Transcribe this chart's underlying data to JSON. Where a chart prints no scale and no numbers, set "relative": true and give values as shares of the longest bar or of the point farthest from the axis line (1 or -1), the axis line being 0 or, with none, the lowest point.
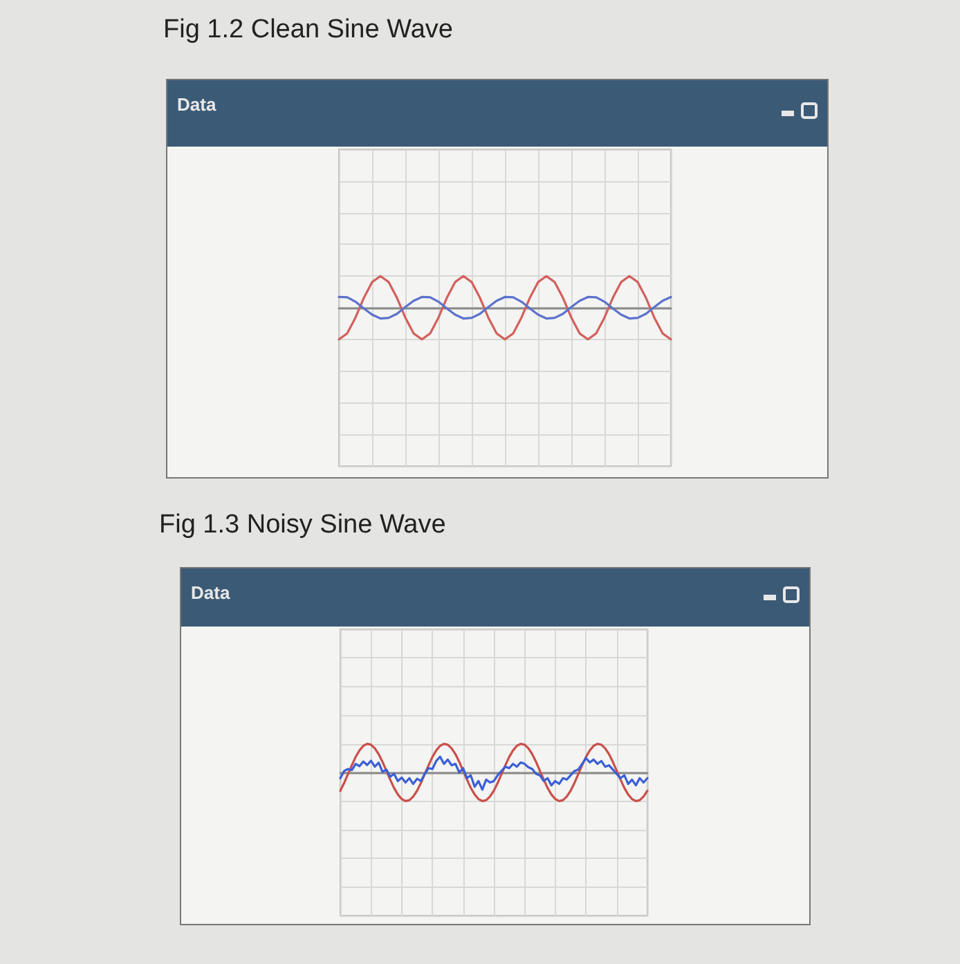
{
  "chart_data": [
    {
      "type": "line",
      "title": "Fig 1.2 Clean Sine Wave",
      "annotations": [
        "Data"
      ],
      "relative": true,
      "grid": true,
      "marker": "none",
      "categories": [
        null,
        null,
        null,
        null,
        null,
        null,
        null,
        null,
        null,
        null,
        null,
        null,
        null,
        null,
        null,
        null,
        null,
        null,
        null,
        null,
        null,
        null,
        null,
        null,
        null,
        null,
        null,
        null,
        null,
        null,
        null,
        null,
        null,
        null,
        null,
        null,
        null,
        null,
        null,
        null,
        null
      ],
      "series": [
        {
          "color": "#d2605c",
          "values": [
            -1,
            -0.81,
            -0.31,
            0.31,
            0.81,
            1,
            0.81,
            0.31,
            -0.31,
            -0.81,
            -1,
            -0.81,
            -0.31,
            0.31,
            0.81,
            1,
            0.81,
            0.31,
            -0.31,
            -0.81,
            -1,
            -0.81,
            -0.31,
            0.31,
            0.81,
            1,
            0.81,
            0.31,
            -0.31,
            -0.81,
            -1,
            -0.81,
            -0.31,
            0.31,
            0.81,
            1,
            0.81,
            0.31,
            -0.31,
            -0.81,
            -1
          ]
        },
        {
          "color": "#5b72cc",
          "values": [
            0.34,
            0.33,
            0.19,
            -0.02,
            -0.22,
            -0.34,
            -0.32,
            -0.19,
            0.02,
            0.22,
            0.34,
            0.33,
            0.19,
            -0.02,
            -0.22,
            -0.34,
            -0.32,
            -0.19,
            0.02,
            0.22,
            0.34,
            0.33,
            0.19,
            -0.02,
            -0.22,
            -0.34,
            -0.32,
            -0.19,
            0.02,
            0.22,
            0.34,
            0.33,
            0.19,
            -0.02,
            -0.22,
            -0.34,
            -0.32,
            -0.19,
            0.02,
            0.22,
            0.34
          ]
        }
      ]
    },
    {
      "type": "line",
      "title": "Fig 1.3 Noisy Sine Wave",
      "annotations": [
        "Data"
      ],
      "relative": true,
      "grid": true,
      "marker": "none",
      "categories": [
        null,
        null,
        null,
        null,
        null,
        null,
        null,
        null,
        null,
        null,
        null,
        null,
        null,
        null,
        null,
        null,
        null,
        null,
        null,
        null,
        null,
        null,
        null,
        null,
        null,
        null,
        null,
        null,
        null,
        null,
        null,
        null,
        null,
        null,
        null,
        null,
        null,
        null,
        null,
        null,
        null,
        null,
        null,
        null,
        null,
        null,
        null,
        null,
        null,
        null,
        null,
        null,
        null,
        null,
        null,
        null,
        null,
        null,
        null,
        null,
        null,
        null,
        null,
        null,
        null,
        null,
        null,
        null,
        null,
        null,
        null,
        null,
        null,
        null,
        null,
        null,
        null,
        null,
        null,
        null,
        null
      ],
      "series": [
        {
          "color": "#c9504a",
          "values": [
            -0.64,
            -0.37,
            -0.06,
            0.25,
            0.54,
            0.77,
            0.93,
            1,
            0.97,
            0.84,
            0.64,
            0.37,
            0.06,
            -0.25,
            -0.54,
            -0.77,
            -0.93,
            -1,
            -0.97,
            -0.84,
            -0.64,
            -0.37,
            -0.06,
            0.25,
            0.54,
            0.77,
            0.93,
            1,
            0.97,
            0.84,
            0.64,
            0.37,
            0.06,
            -0.25,
            -0.54,
            -0.77,
            -0.93,
            -1,
            -0.97,
            -0.84,
            -0.64,
            -0.37,
            -0.06,
            0.25,
            0.54,
            0.77,
            0.93,
            1,
            0.97,
            0.84,
            0.64,
            0.37,
            0.06,
            -0.25,
            -0.54,
            -0.77,
            -0.93,
            -1,
            -0.97,
            -0.84,
            -0.64,
            -0.37,
            -0.06,
            0.25,
            0.54,
            0.77,
            0.93,
            1,
            0.97,
            0.84,
            0.64,
            0.37,
            0.06,
            -0.25,
            -0.54,
            -0.77,
            -0.93,
            -1,
            -0.97,
            -0.84,
            -0.64
          ]
        },
        {
          "color": "#3a5fd6",
          "values": [
            -0.2,
            0.05,
            0.12,
            0.08,
            0.3,
            0.22,
            0.38,
            0.26,
            0.41,
            0.2,
            0.34,
            0.02,
            0.1,
            -0.15,
            -0.05,
            -0.3,
            -0.18,
            -0.35,
            -0.2,
            -0.4,
            -0.22,
            -0.3,
            -0.05,
            0.15,
            0.12,
            0.4,
            0.55,
            0.3,
            0.45,
            0.25,
            0.3,
            0,
            0.15,
            -0.2,
            -0.1,
            -0.5,
            -0.3,
            -0.6,
            -0.25,
            -0.35,
            -0.3,
            -0.1,
            0.05,
            0.2,
            0.15,
            0.3,
            0.2,
            0.35,
            0.3,
            0.18,
            0.12,
            -0.05,
            -0.1,
            -0.3,
            -0.2,
            -0.45,
            -0.3,
            -0.4,
            -0.2,
            -0.25,
            -0.1,
            0.05,
            0.1,
            0.3,
            0.5,
            0.35,
            0.45,
            0.3,
            0.4,
            0.2,
            0.25,
            0.1,
            -0.05,
            -0.2,
            -0.1,
            -0.4,
            -0.25,
            -0.45,
            -0.2,
            -0.35,
            -0.2
          ]
        }
      ]
    }
  ]
}
